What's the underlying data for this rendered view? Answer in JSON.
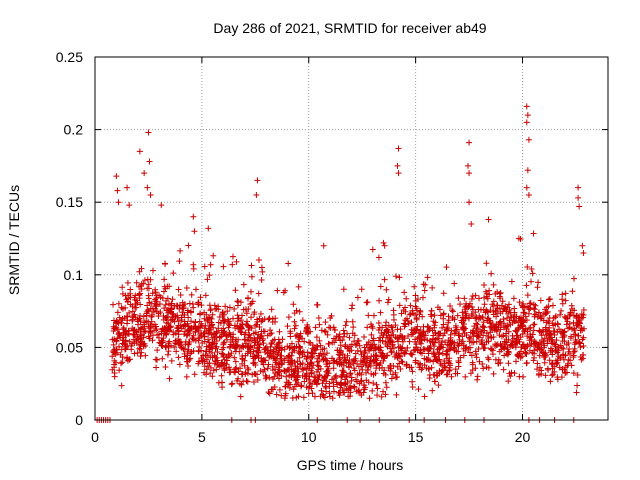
{
  "chart_data": {
    "type": "scatter",
    "title": "Day 286 of 2021, SRMTID for receiver ab49",
    "xlabel": "GPS time / hours",
    "ylabel": "SRMTID / TECUs",
    "xlim": [
      0,
      24
    ],
    "ylim": [
      0,
      0.25
    ],
    "grid": true,
    "series_color": "#cc0000",
    "x_ticks": [
      {
        "value": 0,
        "label": "0"
      },
      {
        "value": 5,
        "label": "5"
      },
      {
        "value": 10,
        "label": "10"
      },
      {
        "value": 15,
        "label": "15"
      },
      {
        "value": 20,
        "label": "20"
      }
    ],
    "y_ticks": [
      {
        "value": 0,
        "label": "0"
      },
      {
        "value": 0.05,
        "label": "0.05"
      },
      {
        "value": 0.1,
        "label": "0.1"
      },
      {
        "value": 0.15,
        "label": "0.15"
      },
      {
        "value": 0.2,
        "label": "0.2"
      },
      {
        "value": 0.25,
        "label": "0.25"
      }
    ],
    "trend": [
      {
        "x": 0.8,
        "y": 0.055
      },
      {
        "x": 1.5,
        "y": 0.06
      },
      {
        "x": 2.5,
        "y": 0.07
      },
      {
        "x": 3.5,
        "y": 0.065
      },
      {
        "x": 4.5,
        "y": 0.06
      },
      {
        "x": 5.5,
        "y": 0.055
      },
      {
        "x": 6.5,
        "y": 0.05
      },
      {
        "x": 7.5,
        "y": 0.055
      },
      {
        "x": 8.5,
        "y": 0.04
      },
      {
        "x": 9.5,
        "y": 0.042
      },
      {
        "x": 10.5,
        "y": 0.04
      },
      {
        "x": 11.5,
        "y": 0.035
      },
      {
        "x": 12.5,
        "y": 0.038
      },
      {
        "x": 13.5,
        "y": 0.045
      },
      {
        "x": 14.5,
        "y": 0.055
      },
      {
        "x": 15.5,
        "y": 0.052
      },
      {
        "x": 16.5,
        "y": 0.05
      },
      {
        "x": 17.5,
        "y": 0.06
      },
      {
        "x": 18.5,
        "y": 0.062
      },
      {
        "x": 19.5,
        "y": 0.058
      },
      {
        "x": 20.5,
        "y": 0.06
      },
      {
        "x": 21.5,
        "y": 0.052
      },
      {
        "x": 22.5,
        "y": 0.055
      },
      {
        "x": 22.9,
        "y": 0.06
      }
    ],
    "outliers": [
      {
        "x": 1.0,
        "y": 0.168
      },
      {
        "x": 1.05,
        "y": 0.158
      },
      {
        "x": 1.1,
        "y": 0.15
      },
      {
        "x": 1.5,
        "y": 0.16
      },
      {
        "x": 1.6,
        "y": 0.148
      },
      {
        "x": 2.1,
        "y": 0.185
      },
      {
        "x": 2.3,
        "y": 0.17
      },
      {
        "x": 2.5,
        "y": 0.198
      },
      {
        "x": 2.55,
        "y": 0.178
      },
      {
        "x": 2.45,
        "y": 0.16
      },
      {
        "x": 2.6,
        "y": 0.155
      },
      {
        "x": 3.1,
        "y": 0.148
      },
      {
        "x": 4.6,
        "y": 0.14
      },
      {
        "x": 4.65,
        "y": 0.13
      },
      {
        "x": 5.3,
        "y": 0.132
      },
      {
        "x": 7.6,
        "y": 0.165
      },
      {
        "x": 7.55,
        "y": 0.155
      },
      {
        "x": 10.7,
        "y": 0.12
      },
      {
        "x": 13.5,
        "y": 0.122
      },
      {
        "x": 13.55,
        "y": 0.12
      },
      {
        "x": 14.2,
        "y": 0.187
      },
      {
        "x": 14.15,
        "y": 0.175
      },
      {
        "x": 14.2,
        "y": 0.17
      },
      {
        "x": 17.5,
        "y": 0.191
      },
      {
        "x": 17.45,
        "y": 0.175
      },
      {
        "x": 17.5,
        "y": 0.17
      },
      {
        "x": 17.5,
        "y": 0.15
      },
      {
        "x": 17.6,
        "y": 0.135
      },
      {
        "x": 20.2,
        "y": 0.216
      },
      {
        "x": 20.25,
        "y": 0.21
      },
      {
        "x": 20.2,
        "y": 0.205
      },
      {
        "x": 20.3,
        "y": 0.193
      },
      {
        "x": 20.25,
        "y": 0.172
      },
      {
        "x": 20.2,
        "y": 0.16
      },
      {
        "x": 20.3,
        "y": 0.155
      },
      {
        "x": 22.6,
        "y": 0.16
      },
      {
        "x": 22.6,
        "y": 0.153
      },
      {
        "x": 22.65,
        "y": 0.147
      },
      {
        "x": 22.8,
        "y": 0.12
      },
      {
        "x": 22.85,
        "y": 0.115
      }
    ],
    "zero_markers": [
      0.1,
      0.2,
      0.3,
      0.4,
      0.5,
      0.6,
      0.7,
      6.4,
      7.3,
      7.5,
      10.4,
      11.8,
      12.4,
      13.3,
      14.7,
      15.4,
      16.4,
      17.3,
      18.2,
      20.3,
      20.8,
      21.5,
      22.4
    ]
  }
}
